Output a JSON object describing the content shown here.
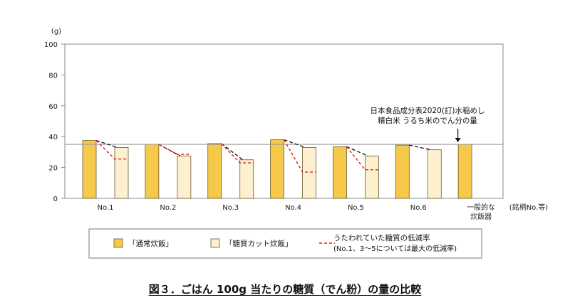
{
  "chart_data": {
    "type": "bar",
    "yunit": "(g)",
    "ylim": [
      0,
      100
    ],
    "yticks": [
      0,
      20,
      40,
      60,
      80,
      100
    ],
    "categories": [
      "No.1",
      "No.2",
      "No.3",
      "No.4",
      "No.5",
      "No.6",
      "一般的な\n炊飯器"
    ],
    "category_suffix": "(銘柄No.等)",
    "series": [
      {
        "name": "「通常炊飯」",
        "color": "#f6c94a",
        "values": [
          37.5,
          35,
          35.5,
          38,
          33.5,
          34.5,
          35
        ]
      },
      {
        "name": "「糖質カット炊飯」",
        "color": "#fdf0cf",
        "values": [
          33,
          27.5,
          25,
          33,
          27.5,
          31.5,
          null
        ]
      }
    ],
    "claimed_reduction": {
      "name": "うたわれていた糖質の低減率",
      "note": "(No.1、3～5については最大の低減率)",
      "color": "#e02020",
      "values": [
        25.5,
        28.5,
        23,
        17,
        18.5,
        null,
        null
      ]
    },
    "reference_line": {
      "value": 35,
      "label": "日本食品成分表2020(訂)水稲めし\n精白米 うるち米のでん分の量"
    }
  },
  "caption": "図３．ごはん 100g 当たりの糖質（でん粉）の量の比較"
}
